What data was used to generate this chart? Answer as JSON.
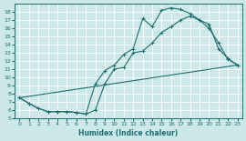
{
  "xlabel": "Humidex (Indice chaleur)",
  "bg_color": "#cce8e8",
  "grid_color": "#ffffff",
  "line_color": "#1a7070",
  "xlim": [
    -0.5,
    23.5
  ],
  "ylim": [
    5,
    19
  ],
  "xticks": [
    0,
    1,
    2,
    3,
    4,
    5,
    6,
    7,
    8,
    9,
    10,
    11,
    12,
    13,
    14,
    15,
    16,
    17,
    18,
    19,
    20,
    21,
    22,
    23
  ],
  "yticks": [
    5,
    6,
    7,
    8,
    9,
    10,
    11,
    12,
    13,
    14,
    15,
    16,
    17,
    18
  ],
  "line1_x": [
    0,
    1,
    2,
    3,
    4,
    5,
    6,
    7,
    8,
    9,
    10,
    11,
    12,
    13,
    14,
    15,
    16,
    17,
    18,
    19,
    20,
    21,
    22,
    23
  ],
  "line1_y": [
    7.5,
    6.8,
    6.2,
    5.8,
    5.8,
    5.8,
    5.7,
    5.5,
    6.0,
    9.2,
    11.0,
    11.2,
    13.0,
    13.2,
    14.2,
    15.5,
    16.2,
    17.0,
    17.5,
    17.0,
    16.0,
    14.2,
    12.2,
    11.5
  ],
  "line2_x": [
    0,
    1,
    2,
    3,
    4,
    5,
    6,
    7,
    8,
    9,
    10,
    11,
    12,
    13,
    14,
    15,
    16,
    17,
    18,
    19,
    20,
    21,
    22,
    23
  ],
  "line2_y": [
    7.5,
    6.8,
    6.2,
    5.8,
    5.8,
    5.8,
    5.7,
    5.5,
    9.2,
    10.8,
    11.5,
    12.8,
    13.5,
    17.2,
    16.2,
    18.2,
    18.5,
    18.3,
    17.8,
    17.0,
    16.5,
    13.5,
    12.3,
    11.5
  ],
  "line3_x": [
    0,
    23
  ],
  "line3_y": [
    7.5,
    11.5
  ]
}
